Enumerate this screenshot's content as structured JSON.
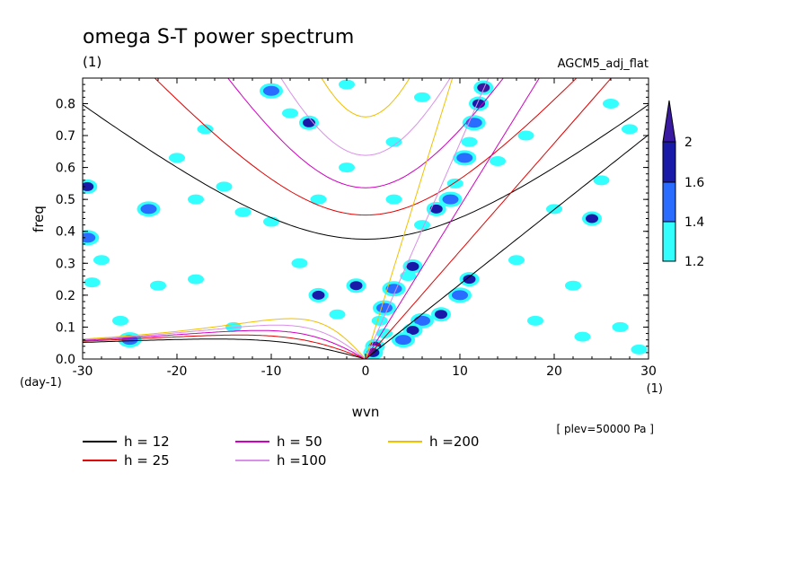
{
  "header": {
    "title": "omega S-T power spectrum",
    "units": "(1)",
    "model": "AGCM5_adj_flat",
    "level_note": "[ plev=50000 Pa ]"
  },
  "chart_data": {
    "type": "heatmap",
    "xlabel": "wvn",
    "ylabel": "freq",
    "x_units": "(1)",
    "y_units": "(day-1)",
    "xlim": [
      -30,
      30
    ],
    "ylim": [
      0,
      0.88
    ],
    "x_ticks": [
      -30,
      -20,
      -10,
      0,
      10,
      20,
      30
    ],
    "x_tick_labels": [
      "-30",
      "-20",
      "-10",
      "0",
      "10",
      "20",
      "30"
    ],
    "y_ticks": [
      0,
      0.1,
      0.2,
      0.3,
      0.4,
      0.5,
      0.6,
      0.7,
      0.8
    ],
    "y_tick_labels": [
      "0.0",
      "0.1",
      "0.2",
      "0.3",
      "0.4",
      "0.5",
      "0.6",
      "0.7",
      "0.8"
    ],
    "colorbar": {
      "levels": [
        1.2,
        1.4,
        1.6,
        2
      ],
      "labels": [
        "1.2",
        "1.4",
        "1.6",
        "2"
      ],
      "colors": [
        "#33ffff",
        "#2a6cff",
        "#1a1aa8",
        "#3a1aa0"
      ]
    },
    "series": [
      {
        "name": "h = 12",
        "h": 12,
        "color": "#000000"
      },
      {
        "name": "h = 25",
        "h": 25,
        "color": "#e00000"
      },
      {
        "name": "h = 50",
        "h": 50,
        "color": "#d000c0"
      },
      {
        "name": "h =100",
        "h": 100,
        "color": "#d890e8"
      },
      {
        "name": "h =200",
        "h": 200,
        "color": "#f0c000"
      }
    ],
    "spectral_blobs": [
      [
        12.5,
        0.85,
        2
      ],
      [
        12,
        0.8,
        1.6
      ],
      [
        11.5,
        0.74,
        1.4
      ],
      [
        11,
        0.68,
        1.2
      ],
      [
        10.5,
        0.63,
        1.4
      ],
      [
        9.5,
        0.55,
        1.2
      ],
      [
        9,
        0.5,
        1.4
      ],
      [
        7.5,
        0.47,
        1.6
      ],
      [
        6,
        0.42,
        1.2
      ],
      [
        5,
        0.29,
        1.6
      ],
      [
        4.5,
        0.26,
        1.2
      ],
      [
        3,
        0.22,
        1.4
      ],
      [
        2,
        0.16,
        1.4
      ],
      [
        1.5,
        0.12,
        1.2
      ],
      [
        1,
        0.04,
        2
      ],
      [
        0.8,
        0.02,
        1.6
      ],
      [
        2,
        0.08,
        1.2
      ],
      [
        11,
        0.25,
        1.6
      ],
      [
        10,
        0.2,
        1.4
      ],
      [
        8,
        0.14,
        1.6
      ],
      [
        6,
        0.12,
        1.4
      ],
      [
        5,
        0.09,
        1.6
      ],
      [
        4,
        0.06,
        1.4
      ],
      [
        -29.5,
        0.54,
        1.6
      ],
      [
        -29.5,
        0.38,
        1.4
      ],
      [
        -28,
        0.31,
        1.2
      ],
      [
        -29,
        0.24,
        1.2
      ],
      [
        -26,
        0.12,
        1.2
      ],
      [
        -25,
        0.06,
        1.4
      ],
      [
        -22,
        0.23,
        1.2
      ],
      [
        -20,
        0.63,
        1.2
      ],
      [
        -18,
        0.25,
        1.2
      ],
      [
        -17,
        0.72,
        1.2
      ],
      [
        -15,
        0.54,
        1.2
      ],
      [
        -13,
        0.46,
        1.2
      ],
      [
        -10,
        0.84,
        1.4
      ],
      [
        -8,
        0.77,
        1.2
      ],
      [
        -6,
        0.74,
        1.6
      ],
      [
        -5,
        0.5,
        1.2
      ],
      [
        -7,
        0.3,
        1.2
      ],
      [
        -5,
        0.2,
        1.6
      ],
      [
        -14,
        0.1,
        1.2
      ],
      [
        -10,
        0.43,
        1.2
      ],
      [
        -23,
        0.47,
        1.4
      ],
      [
        -18,
        0.5,
        1.2
      ],
      [
        -2,
        0.6,
        1.2
      ],
      [
        -1,
        0.23,
        1.6
      ],
      [
        -3,
        0.14,
        1.2
      ],
      [
        3,
        0.68,
        1.2
      ],
      [
        3,
        0.5,
        1.2
      ],
      [
        14,
        0.62,
        1.2
      ],
      [
        16,
        0.31,
        1.2
      ],
      [
        18,
        0.12,
        1.2
      ],
      [
        20,
        0.47,
        1.2
      ],
      [
        22,
        0.23,
        1.2
      ],
      [
        24,
        0.44,
        1.6
      ],
      [
        26,
        0.8,
        1.2
      ],
      [
        28,
        0.72,
        1.2
      ],
      [
        27,
        0.1,
        1.2
      ],
      [
        29,
        0.03,
        1.2
      ],
      [
        25,
        0.56,
        1.2
      ],
      [
        23,
        0.07,
        1.2
      ],
      [
        -2,
        0.86,
        1.2
      ],
      [
        6,
        0.82,
        1.2
      ],
      [
        17,
        0.7,
        1.2
      ]
    ]
  }
}
